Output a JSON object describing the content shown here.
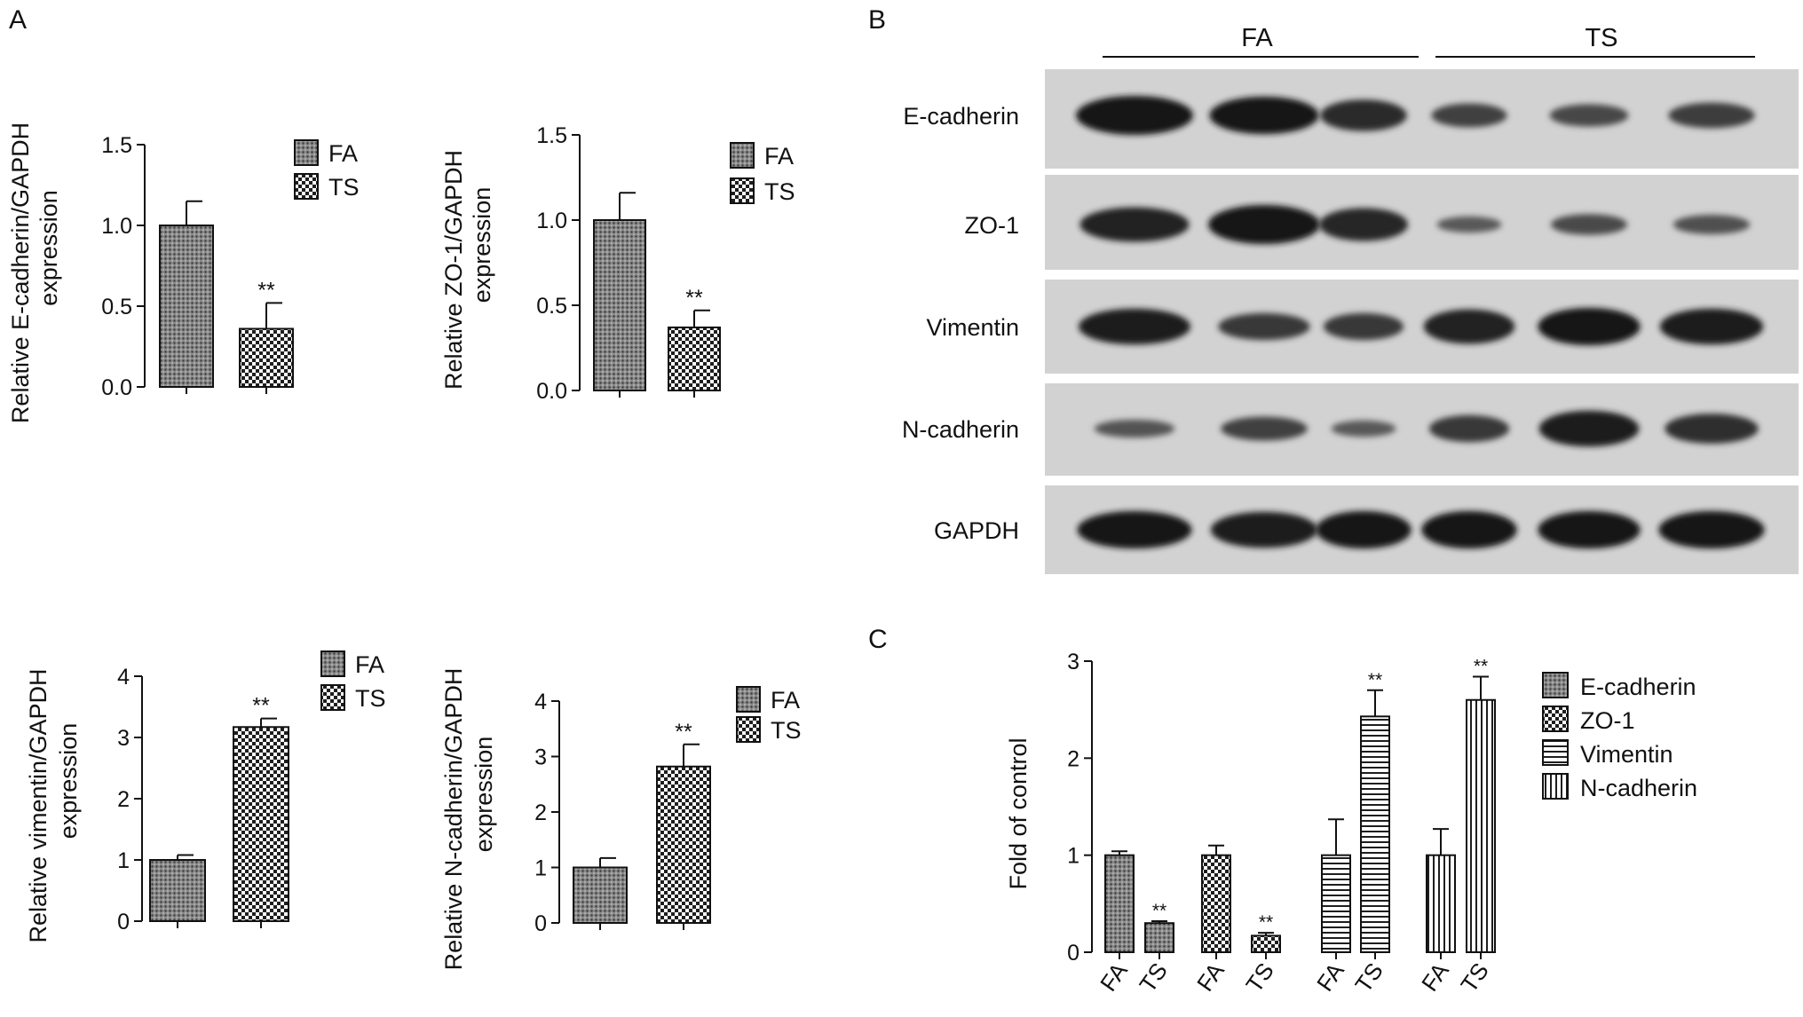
{
  "panels": {
    "A": "A",
    "B": "B",
    "C": "C"
  },
  "chart_data": [
    {
      "type": "bar",
      "categories": [
        "FA",
        "TS"
      ],
      "values": [
        1.0,
        0.36
      ],
      "errors": [
        0.15,
        0.16
      ],
      "significance": [
        "",
        "**"
      ],
      "ylabel_line1": "Relative E-cadherin/GAPDH",
      "ylabel_line2": "expression",
      "ylim": [
        0,
        1.5
      ],
      "yticks": [
        "0.0",
        "0.5",
        "1.0",
        "1.5"
      ],
      "legend": [
        "FA",
        "TS"
      ]
    },
    {
      "type": "bar",
      "categories": [
        "FA",
        "TS"
      ],
      "values": [
        1.0,
        0.37
      ],
      "errors": [
        0.16,
        0.1
      ],
      "significance": [
        "",
        "**"
      ],
      "ylabel_line1": "Relative ZO-1/GAPDH",
      "ylabel_line2": "expression",
      "ylim": [
        0,
        1.5
      ],
      "yticks": [
        "0.0",
        "0.5",
        "1.0",
        "1.5"
      ],
      "legend": [
        "FA",
        "TS"
      ]
    },
    {
      "type": "bar",
      "categories": [
        "FA",
        "TS"
      ],
      "values": [
        1.0,
        3.17
      ],
      "errors": [
        0.08,
        0.14
      ],
      "significance": [
        "",
        "**"
      ],
      "ylabel_line1": "Relative vimentin/GAPDH",
      "ylabel_line2": "expression",
      "ylim": [
        0,
        4
      ],
      "yticks": [
        "0",
        "1",
        "2",
        "3",
        "4"
      ],
      "legend": [
        "FA",
        "TS"
      ]
    },
    {
      "type": "bar",
      "categories": [
        "FA",
        "TS"
      ],
      "values": [
        1.0,
        2.82
      ],
      "errors": [
        0.17,
        0.4
      ],
      "significance": [
        "",
        "**"
      ],
      "ylabel_line1": "Relative N-cadherin/GAPDH",
      "ylabel_line2": "expression",
      "ylim": [
        0,
        4
      ],
      "yticks": [
        "0",
        "1",
        "2",
        "3",
        "4"
      ],
      "legend": [
        "FA",
        "TS"
      ]
    },
    {
      "type": "bar",
      "groups": [
        "E-cadherin",
        "ZO-1",
        "Vimentin",
        "N-cadherin"
      ],
      "categories": [
        "FA",
        "TS"
      ],
      "series": [
        {
          "name": "E-cadherin",
          "values": [
            1.0,
            0.3
          ],
          "errors": [
            0.04,
            0.02
          ],
          "significance": [
            "",
            "**"
          ]
        },
        {
          "name": "ZO-1",
          "values": [
            1.0,
            0.17
          ],
          "errors": [
            0.1,
            0.03
          ],
          "significance": [
            "",
            "**"
          ]
        },
        {
          "name": "Vimentin",
          "values": [
            1.0,
            2.43
          ],
          "errors": [
            0.37,
            0.27
          ],
          "significance": [
            "",
            "**"
          ]
        },
        {
          "name": "N-cadherin",
          "values": [
            1.0,
            2.6
          ],
          "errors": [
            0.27,
            0.24
          ],
          "significance": [
            "",
            "**"
          ]
        }
      ],
      "ylabel": "Fold of control",
      "ylim": [
        0,
        3
      ],
      "yticks": [
        "0",
        "1",
        "2",
        "3"
      ],
      "legend": [
        "E-cadherin",
        "ZO-1",
        "Vimentin",
        "N-cadherin"
      ]
    }
  ],
  "western_blot": {
    "groups": [
      "FA",
      "TS"
    ],
    "proteins": [
      "E-cadherin",
      "ZO-1",
      "Vimentin",
      "N-cadherin",
      "GAPDH"
    ],
    "band_intensity": [
      [
        1.0,
        0.95,
        0.75,
        0.5,
        0.45,
        0.55
      ],
      [
        0.85,
        1.0,
        0.8,
        0.25,
        0.4,
        0.35
      ],
      [
        0.9,
        0.6,
        0.6,
        0.85,
        0.95,
        0.9
      ],
      [
        0.3,
        0.5,
        0.25,
        0.6,
        0.9,
        0.7
      ],
      [
        0.95,
        0.9,
        0.95,
        0.95,
        0.95,
        0.95
      ]
    ]
  }
}
